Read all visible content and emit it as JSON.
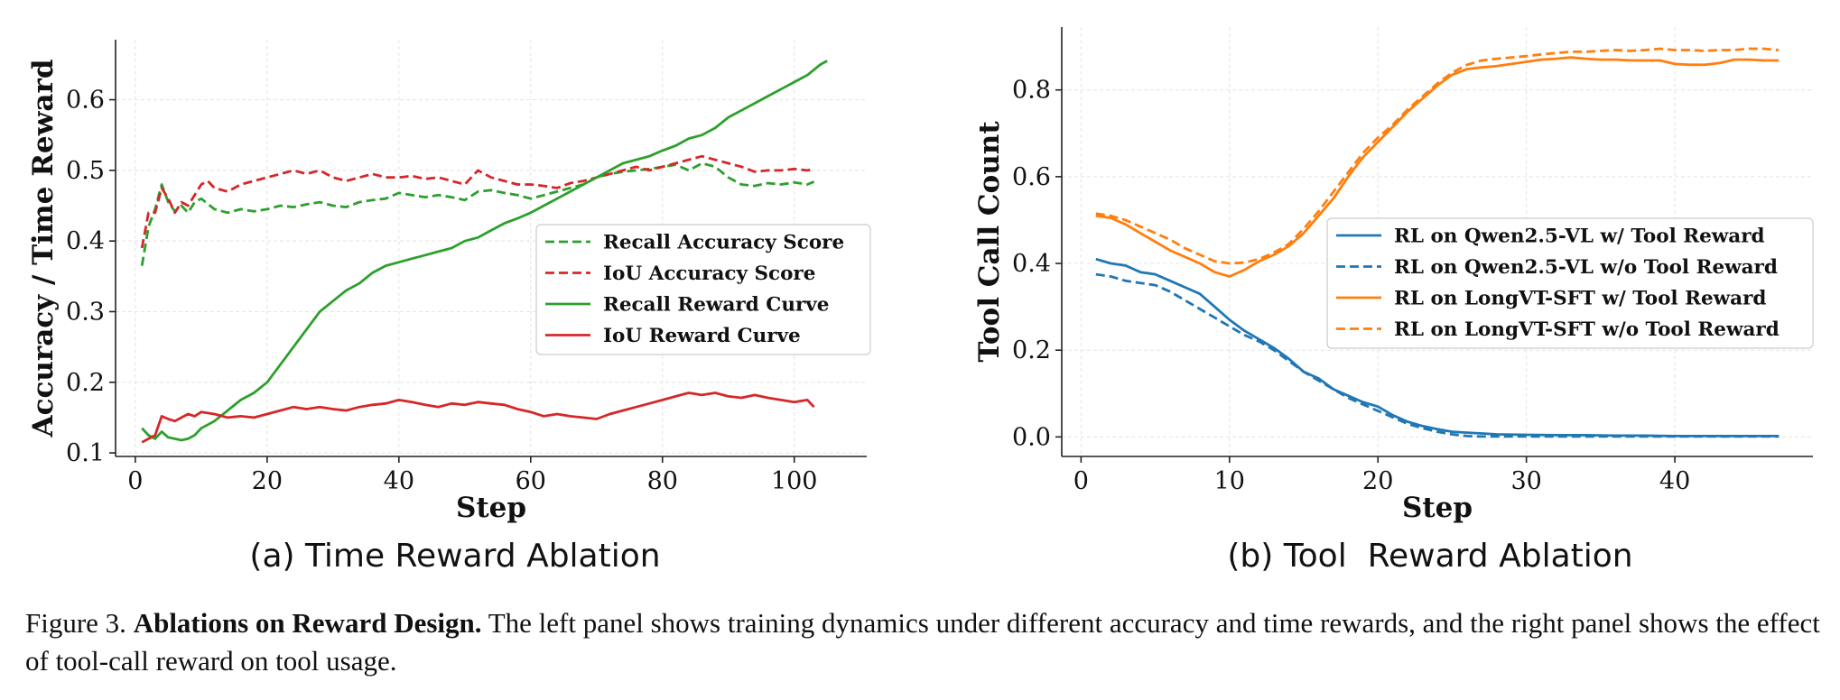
{
  "chart_data": [
    {
      "type": "line",
      "subtitle": "(a) Time Reward Ablation",
      "xlabel": "Step",
      "ylabel": "Accuracy / Time Reward",
      "xlim": [
        -3,
        111
      ],
      "ylim": [
        0.095,
        0.685
      ],
      "xticks": [
        0,
        20,
        40,
        60,
        80,
        100
      ],
      "yticks": [
        0.1,
        0.2,
        0.3,
        0.4,
        0.5,
        0.6
      ],
      "xtick_labels": [
        "0",
        "20",
        "40",
        "60",
        "80",
        "100"
      ],
      "ytick_labels": [
        "0.1",
        "0.2",
        "0.3",
        "0.4",
        "0.5",
        "0.6"
      ],
      "grid": true,
      "legend_position": "center-right",
      "series": [
        {
          "name": "Recall Accuracy Score",
          "color": "#2ca02c",
          "dash": true,
          "x": [
            1,
            2,
            3,
            4,
            5,
            6,
            7,
            8,
            9,
            10,
            12,
            14,
            16,
            18,
            20,
            22,
            24,
            26,
            28,
            30,
            32,
            34,
            36,
            38,
            40,
            42,
            44,
            46,
            48,
            50,
            52,
            54,
            56,
            58,
            60,
            62,
            64,
            66,
            68,
            70,
            72,
            74,
            76,
            78,
            80,
            82,
            84,
            86,
            88,
            90,
            92,
            94,
            96,
            98,
            100,
            102,
            103
          ],
          "y": [
            0.365,
            0.42,
            0.445,
            0.48,
            0.455,
            0.442,
            0.45,
            0.44,
            0.455,
            0.46,
            0.445,
            0.44,
            0.445,
            0.442,
            0.445,
            0.45,
            0.448,
            0.452,
            0.455,
            0.45,
            0.448,
            0.455,
            0.458,
            0.46,
            0.468,
            0.465,
            0.462,
            0.465,
            0.462,
            0.458,
            0.47,
            0.472,
            0.468,
            0.465,
            0.46,
            0.465,
            0.47,
            0.475,
            0.48,
            0.49,
            0.495,
            0.498,
            0.5,
            0.502,
            0.505,
            0.508,
            0.5,
            0.51,
            0.505,
            0.49,
            0.48,
            0.478,
            0.482,
            0.48,
            0.483,
            0.48,
            0.484
          ]
        },
        {
          "name": "IoU Accuracy Score",
          "color": "#d62728",
          "dash": true,
          "x": [
            1,
            2,
            3,
            4,
            5,
            6,
            7,
            8,
            9,
            10,
            11,
            12,
            14,
            16,
            18,
            20,
            22,
            24,
            26,
            28,
            30,
            32,
            34,
            36,
            38,
            40,
            42,
            44,
            46,
            48,
            50,
            52,
            54,
            56,
            58,
            60,
            62,
            64,
            66,
            68,
            70,
            72,
            74,
            76,
            78,
            80,
            82,
            84,
            86,
            88,
            90,
            92,
            94,
            96,
            98,
            100,
            102,
            103
          ],
          "y": [
            0.39,
            0.44,
            0.44,
            0.475,
            0.46,
            0.44,
            0.455,
            0.45,
            0.465,
            0.48,
            0.485,
            0.475,
            0.47,
            0.48,
            0.485,
            0.49,
            0.495,
            0.5,
            0.495,
            0.5,
            0.49,
            0.485,
            0.49,
            0.495,
            0.49,
            0.49,
            0.492,
            0.488,
            0.49,
            0.485,
            0.48,
            0.5,
            0.49,
            0.485,
            0.48,
            0.48,
            0.478,
            0.475,
            0.482,
            0.485,
            0.49,
            0.495,
            0.5,
            0.505,
            0.5,
            0.505,
            0.51,
            0.515,
            0.52,
            0.515,
            0.51,
            0.505,
            0.498,
            0.5,
            0.5,
            0.502,
            0.5,
            0.502
          ]
        },
        {
          "name": "Recall Reward Curve",
          "color": "#2ca02c",
          "dash": false,
          "x": [
            1,
            2,
            3,
            4,
            5,
            6,
            7,
            8,
            9,
            10,
            11,
            12,
            14,
            16,
            18,
            20,
            22,
            24,
            26,
            28,
            30,
            32,
            34,
            36,
            38,
            40,
            42,
            44,
            46,
            48,
            50,
            52,
            54,
            56,
            58,
            60,
            62,
            64,
            66,
            68,
            70,
            72,
            74,
            76,
            78,
            80,
            82,
            84,
            86,
            88,
            90,
            92,
            94,
            96,
            98,
            100,
            102,
            104,
            105
          ],
          "y": [
            0.135,
            0.125,
            0.12,
            0.13,
            0.122,
            0.12,
            0.118,
            0.12,
            0.125,
            0.135,
            0.14,
            0.145,
            0.16,
            0.175,
            0.185,
            0.2,
            0.225,
            0.25,
            0.275,
            0.3,
            0.315,
            0.33,
            0.34,
            0.355,
            0.365,
            0.37,
            0.375,
            0.38,
            0.385,
            0.39,
            0.4,
            0.405,
            0.415,
            0.425,
            0.432,
            0.44,
            0.45,
            0.46,
            0.47,
            0.48,
            0.49,
            0.5,
            0.51,
            0.515,
            0.52,
            0.528,
            0.535,
            0.545,
            0.55,
            0.56,
            0.575,
            0.585,
            0.595,
            0.605,
            0.615,
            0.625,
            0.635,
            0.65,
            0.655
          ]
        },
        {
          "name": "IoU Reward Curve",
          "color": "#d62728",
          "dash": false,
          "x": [
            1,
            2,
            3,
            4,
            5,
            6,
            7,
            8,
            9,
            10,
            12,
            14,
            16,
            18,
            20,
            22,
            24,
            26,
            28,
            30,
            32,
            34,
            36,
            38,
            40,
            42,
            44,
            46,
            48,
            50,
            52,
            54,
            56,
            58,
            60,
            62,
            64,
            66,
            68,
            70,
            72,
            74,
            76,
            78,
            80,
            82,
            84,
            86,
            88,
            90,
            92,
            94,
            96,
            98,
            100,
            102,
            103
          ],
          "y": [
            0.115,
            0.12,
            0.125,
            0.152,
            0.148,
            0.145,
            0.15,
            0.155,
            0.152,
            0.158,
            0.155,
            0.15,
            0.152,
            0.15,
            0.155,
            0.16,
            0.165,
            0.162,
            0.165,
            0.162,
            0.16,
            0.165,
            0.168,
            0.17,
            0.175,
            0.172,
            0.168,
            0.165,
            0.17,
            0.168,
            0.172,
            0.17,
            0.168,
            0.162,
            0.158,
            0.152,
            0.155,
            0.152,
            0.15,
            0.148,
            0.155,
            0.16,
            0.165,
            0.17,
            0.175,
            0.18,
            0.185,
            0.182,
            0.185,
            0.18,
            0.178,
            0.182,
            0.178,
            0.175,
            0.172,
            0.175,
            0.165
          ]
        }
      ]
    },
    {
      "type": "line",
      "subtitle": "(b) Tool  Reward Ablation",
      "xlabel": "Step",
      "ylabel": "Tool Call Count",
      "xlim": [
        -1.3,
        49.3
      ],
      "ylim": [
        -0.045,
        0.945
      ],
      "xticks": [
        0,
        10,
        20,
        30,
        40
      ],
      "yticks": [
        0.0,
        0.2,
        0.4,
        0.6,
        0.8
      ],
      "xtick_labels": [
        "0",
        "10",
        "20",
        "30",
        "40"
      ],
      "ytick_labels": [
        "0.0",
        "0.2",
        "0.4",
        "0.6",
        "0.8"
      ],
      "grid": true,
      "legend_position": "center-right",
      "series": [
        {
          "name": "RL on Qwen2.5-VL w/ Tool Reward",
          "color": "#1f77b4",
          "dash": false,
          "x": [
            1,
            2,
            3,
            4,
            5,
            6,
            7,
            8,
            9,
            10,
            11,
            12,
            13,
            14,
            15,
            16,
            17,
            18,
            19,
            20,
            21,
            22,
            23,
            24,
            25,
            26,
            27,
            28,
            30,
            32,
            34,
            36,
            38,
            40,
            42,
            44,
            46,
            47
          ],
          "y": [
            0.41,
            0.4,
            0.395,
            0.38,
            0.375,
            0.36,
            0.345,
            0.33,
            0.3,
            0.27,
            0.245,
            0.225,
            0.205,
            0.18,
            0.15,
            0.135,
            0.11,
            0.095,
            0.08,
            0.07,
            0.05,
            0.035,
            0.025,
            0.018,
            0.012,
            0.01,
            0.008,
            0.006,
            0.005,
            0.004,
            0.004,
            0.003,
            0.003,
            0.002,
            0.002,
            0.002,
            0.002,
            0.002
          ]
        },
        {
          "name": "RL on Qwen2.5-VL w/o Tool Reward",
          "color": "#1f77b4",
          "dash": true,
          "x": [
            1,
            2,
            3,
            4,
            5,
            6,
            7,
            8,
            9,
            10,
            11,
            12,
            13,
            14,
            15,
            16,
            17,
            18,
            19,
            20,
            21,
            22,
            23,
            24,
            25,
            26,
            27,
            28,
            30,
            32,
            34,
            36,
            38,
            40,
            42,
            44,
            46,
            47
          ],
          "y": [
            0.375,
            0.37,
            0.36,
            0.355,
            0.35,
            0.335,
            0.315,
            0.295,
            0.275,
            0.255,
            0.235,
            0.22,
            0.2,
            0.175,
            0.15,
            0.13,
            0.11,
            0.09,
            0.075,
            0.06,
            0.045,
            0.03,
            0.02,
            0.012,
            0.006,
            0.002,
            0.001,
            0.001,
            0.001,
            0.001,
            0.001,
            0.001,
            0.001,
            0.001,
            0.001,
            0.001,
            0.001,
            0.001
          ]
        },
        {
          "name": "RL on LongVT-SFT w/ Tool Reward",
          "color": "#ff7f0e",
          "dash": false,
          "x": [
            1,
            2,
            3,
            4,
            5,
            6,
            7,
            8,
            9,
            10,
            11,
            12,
            13,
            14,
            15,
            16,
            17,
            18,
            19,
            20,
            21,
            22,
            23,
            24,
            25,
            26,
            27,
            28,
            29,
            30,
            31,
            32,
            33,
            34,
            35,
            36,
            37,
            38,
            39,
            40,
            41,
            42,
            43,
            44,
            45,
            46,
            47
          ],
          "y": [
            0.51,
            0.505,
            0.49,
            0.47,
            0.45,
            0.43,
            0.415,
            0.4,
            0.38,
            0.37,
            0.385,
            0.405,
            0.42,
            0.44,
            0.47,
            0.51,
            0.55,
            0.6,
            0.645,
            0.68,
            0.715,
            0.75,
            0.78,
            0.81,
            0.835,
            0.848,
            0.852,
            0.855,
            0.86,
            0.865,
            0.87,
            0.872,
            0.875,
            0.872,
            0.87,
            0.87,
            0.868,
            0.868,
            0.868,
            0.86,
            0.858,
            0.858,
            0.862,
            0.87,
            0.87,
            0.868,
            0.868
          ]
        },
        {
          "name": "RL on LongVT-SFT w/o Tool Reward",
          "color": "#ff7f0e",
          "dash": true,
          "x": [
            1,
            2,
            3,
            4,
            5,
            6,
            7,
            8,
            9,
            10,
            11,
            12,
            13,
            14,
            15,
            16,
            17,
            18,
            19,
            20,
            21,
            22,
            23,
            24,
            25,
            26,
            27,
            28,
            29,
            30,
            31,
            32,
            33,
            34,
            35,
            36,
            37,
            38,
            39,
            40,
            41,
            42,
            43,
            44,
            45,
            46,
            47
          ],
          "y": [
            0.515,
            0.51,
            0.5,
            0.485,
            0.47,
            0.455,
            0.435,
            0.42,
            0.405,
            0.4,
            0.402,
            0.41,
            0.425,
            0.445,
            0.48,
            0.52,
            0.565,
            0.61,
            0.655,
            0.69,
            0.72,
            0.755,
            0.785,
            0.815,
            0.84,
            0.858,
            0.868,
            0.872,
            0.875,
            0.878,
            0.882,
            0.885,
            0.888,
            0.888,
            0.89,
            0.892,
            0.89,
            0.892,
            0.895,
            0.892,
            0.892,
            0.89,
            0.892,
            0.892,
            0.895,
            0.895,
            0.892
          ]
        }
      ]
    }
  ],
  "caption": {
    "label": "Figure 3.",
    "bold": "Ablations on Reward Design.",
    "text": "The left panel shows training dynamics under different accuracy and time rewards, and the right panel shows the effect of tool-call reward on tool usage."
  }
}
